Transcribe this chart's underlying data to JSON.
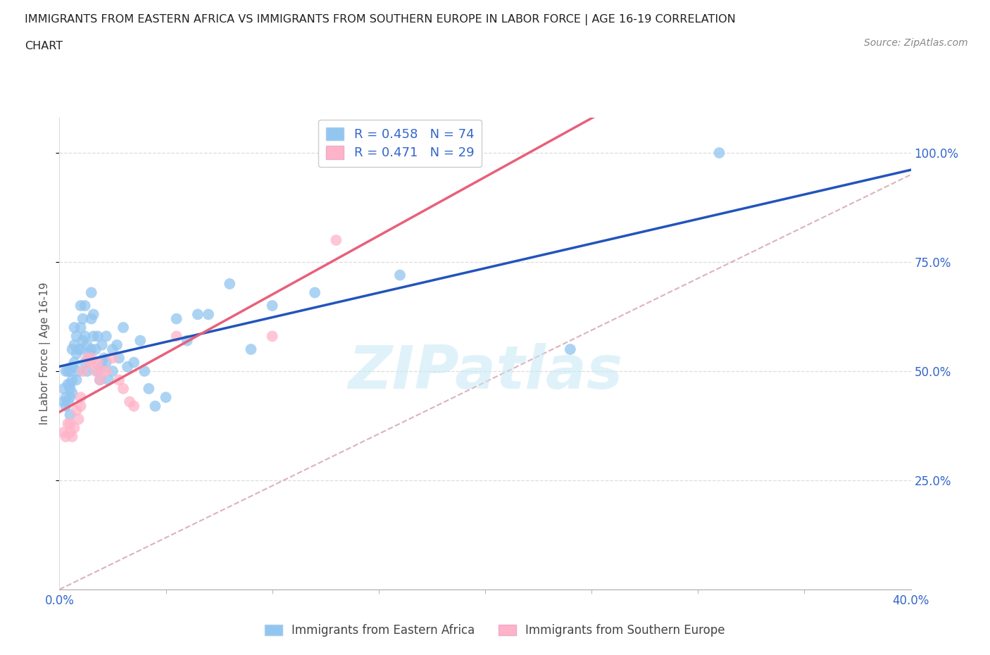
{
  "title_line1": "IMMIGRANTS FROM EASTERN AFRICA VS IMMIGRANTS FROM SOUTHERN EUROPE IN LABOR FORCE | AGE 16-19 CORRELATION",
  "title_line2": "CHART",
  "source_text": "Source: ZipAtlas.com",
  "ylabel": "In Labor Force | Age 16-19",
  "xlim": [
    0.0,
    0.4
  ],
  "ylim": [
    0.0,
    1.08
  ],
  "ytick_labels": [
    "25.0%",
    "50.0%",
    "75.0%",
    "100.0%"
  ],
  "ytick_values": [
    0.25,
    0.5,
    0.75,
    1.0
  ],
  "xtick_labels": [
    "0.0%",
    "40.0%"
  ],
  "xtick_values": [
    0.0,
    0.4
  ],
  "legend_labels": [
    "Immigrants from Eastern Africa",
    "Immigrants from Southern Europe"
  ],
  "R_eastern": 0.458,
  "N_eastern": 74,
  "R_southern": 0.471,
  "N_southern": 29,
  "color_eastern": "#92C5F0",
  "color_eastern_line": "#2255BB",
  "color_southern": "#FFB3C8",
  "color_southern_line": "#E8607A",
  "color_diag": "#D4A0A8",
  "watermark": "ZIPatlas",
  "eastern_x": [
    0.002,
    0.002,
    0.003,
    0.003,
    0.003,
    0.004,
    0.004,
    0.004,
    0.005,
    0.005,
    0.005,
    0.005,
    0.005,
    0.006,
    0.006,
    0.006,
    0.006,
    0.007,
    0.007,
    0.007,
    0.008,
    0.008,
    0.008,
    0.009,
    0.009,
    0.01,
    0.01,
    0.01,
    0.011,
    0.011,
    0.012,
    0.012,
    0.012,
    0.013,
    0.013,
    0.014,
    0.015,
    0.015,
    0.015,
    0.016,
    0.016,
    0.017,
    0.018,
    0.018,
    0.019,
    0.02,
    0.02,
    0.021,
    0.022,
    0.022,
    0.023,
    0.025,
    0.025,
    0.027,
    0.028,
    0.03,
    0.032,
    0.035,
    0.038,
    0.04,
    0.042,
    0.045,
    0.05,
    0.055,
    0.06,
    0.065,
    0.07,
    0.08,
    0.09,
    0.1,
    0.12,
    0.16,
    0.24,
    0.31
  ],
  "eastern_y": [
    0.46,
    0.43,
    0.5,
    0.44,
    0.42,
    0.5,
    0.47,
    0.43,
    0.5,
    0.47,
    0.46,
    0.44,
    0.4,
    0.55,
    0.51,
    0.48,
    0.45,
    0.6,
    0.56,
    0.52,
    0.58,
    0.54,
    0.48,
    0.55,
    0.5,
    0.65,
    0.6,
    0.55,
    0.62,
    0.57,
    0.65,
    0.58,
    0.52,
    0.56,
    0.5,
    0.54,
    0.68,
    0.62,
    0.55,
    0.63,
    0.58,
    0.55,
    0.58,
    0.5,
    0.48,
    0.56,
    0.51,
    0.53,
    0.58,
    0.52,
    0.48,
    0.55,
    0.5,
    0.56,
    0.53,
    0.6,
    0.51,
    0.52,
    0.57,
    0.5,
    0.46,
    0.42,
    0.44,
    0.62,
    0.57,
    0.63,
    0.63,
    0.7,
    0.55,
    0.65,
    0.68,
    0.72,
    0.55,
    1.0
  ],
  "southern_x": [
    0.002,
    0.003,
    0.004,
    0.005,
    0.005,
    0.006,
    0.007,
    0.008,
    0.009,
    0.01,
    0.01,
    0.011,
    0.013,
    0.014,
    0.015,
    0.016,
    0.017,
    0.018,
    0.019,
    0.02,
    0.022,
    0.025,
    0.028,
    0.03,
    0.033,
    0.035,
    0.055,
    0.1,
    0.13
  ],
  "southern_y": [
    0.36,
    0.35,
    0.38,
    0.38,
    0.36,
    0.35,
    0.37,
    0.41,
    0.39,
    0.44,
    0.42,
    0.5,
    0.53,
    0.52,
    0.53,
    0.52,
    0.5,
    0.52,
    0.48,
    0.5,
    0.5,
    0.53,
    0.48,
    0.46,
    0.43,
    0.42,
    0.58,
    0.58,
    0.8
  ]
}
